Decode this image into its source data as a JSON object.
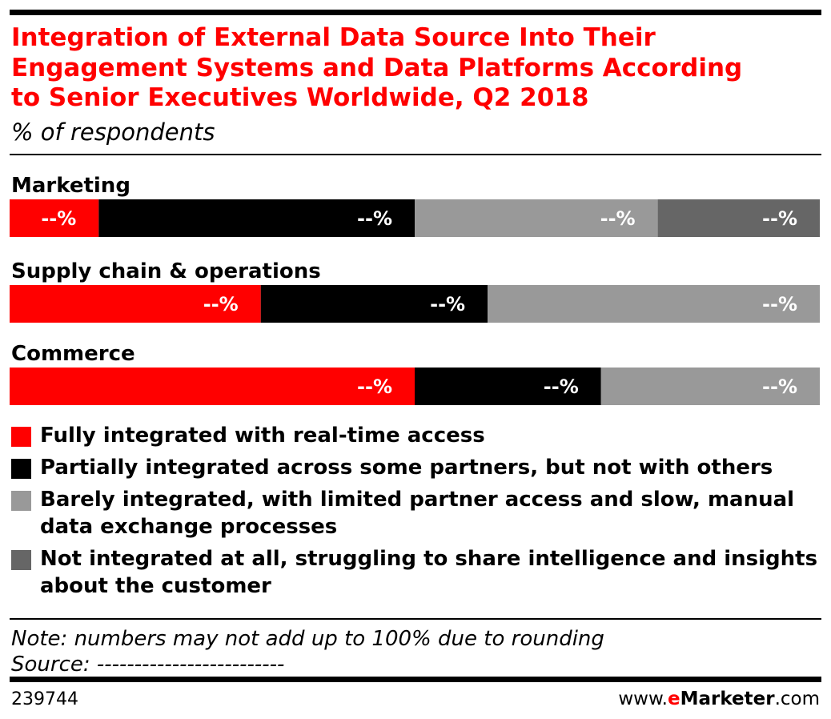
{
  "chart_data": {
    "type": "stacked-bar",
    "title": [
      "Integration of External Data Source Into Their",
      "Engagement Systems and Data Platforms According",
      "to Senior Executives Worldwide, Q2 2018"
    ],
    "subtitle": "% of respondents",
    "categories": [
      "Marketing",
      "Supply chain & operations",
      "Commerce"
    ],
    "series": [
      {
        "name": "Fully integrated with real-time access",
        "color": "#ff0000",
        "values": [
          11,
          31,
          50
        ],
        "value_labels": [
          "--%",
          "--%",
          "--%"
        ]
      },
      {
        "name": "Partially integrated across some partners, but not with others",
        "color": "#000000",
        "values": [
          39,
          28,
          23
        ],
        "value_labels": [
          "--%",
          "--%",
          "--%"
        ]
      },
      {
        "name": "Barely integrated, with limited partner access and slow, manual data exchange processes",
        "color": "#999999",
        "values": [
          30,
          41,
          27
        ],
        "value_labels": [
          "--%",
          "--%",
          "--%"
        ]
      },
      {
        "name": "Not integrated at all, struggling to share intelligence and insights about the customer",
        "color": "#666666",
        "values": [
          20,
          null,
          null
        ],
        "value_labels": [
          "--%",
          null,
          null
        ]
      }
    ],
    "note": "Note: numbers may not add up to 100% due to rounding",
    "source": "Source: -------------------------",
    "id": "239744",
    "brand": [
      "www.",
      "e",
      "Marketer",
      ".com"
    ]
  }
}
